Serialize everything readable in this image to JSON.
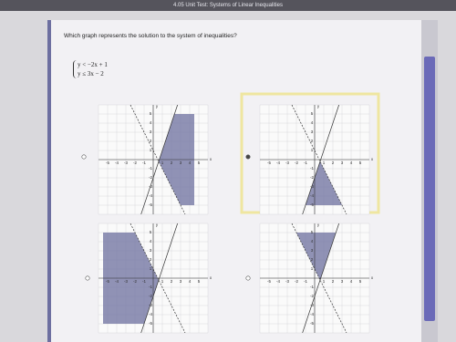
{
  "header": {
    "title": "4.05 Unit Test: Systems of Linear Inequalities"
  },
  "question": {
    "prompt": "Which graph represents the solution to the system of inequalities?",
    "system": [
      "y < −2x + 1",
      "y ≤ 3x − 2"
    ]
  },
  "graph": {
    "x_label": "x",
    "y_label": "y",
    "ticks": [
      "-5",
      "-4",
      "-3",
      "-2",
      "-1",
      "1",
      "2",
      "3",
      "4",
      "5"
    ]
  }
}
